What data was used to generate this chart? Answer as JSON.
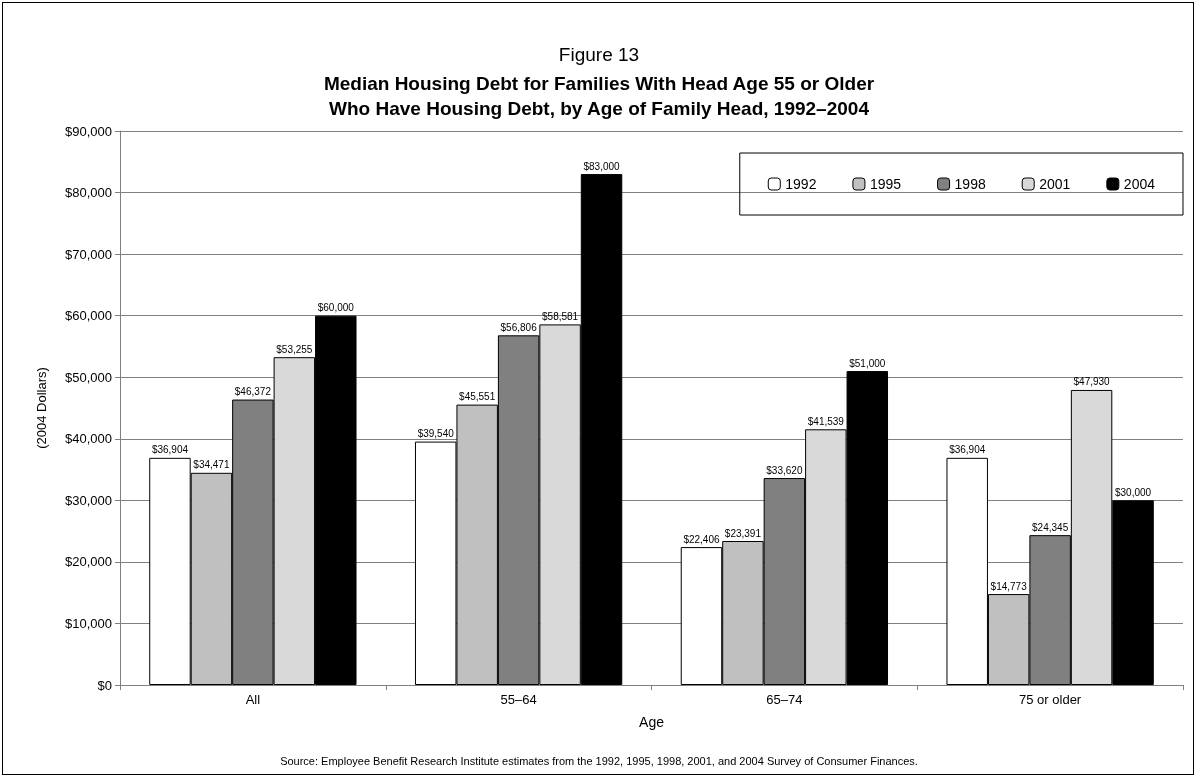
{
  "chart_data": {
    "type": "bar",
    "title": "Figure 13",
    "subtitle": "Median Housing Debt for Families With Head Age 55 or Older\nWho Have Housing Debt, by Age of Family Head, 1992–2004",
    "xlabel": "Age",
    "ylabel": "(2004 Dollars)",
    "annotations": [
      "Source: Employee Benefit Research Institute estimates from the 1992, 1995, 1998, 2001, and 2004 Survey of Consumer Finances."
    ],
    "categories": [
      "All",
      "55–64",
      "65–74",
      "75 or older"
    ],
    "series": [
      {
        "name": "1992",
        "color": "#ffffff",
        "values": [
          36904,
          39540,
          22406,
          36904
        ],
        "value_labels": [
          "$36,904",
          "$39,540",
          "$22,406",
          "$36,904"
        ]
      },
      {
        "name": "1995",
        "color": "#c0c0c0",
        "values": [
          34471,
          45551,
          23391,
          14773
        ],
        "value_labels": [
          "$34,471",
          "$45,551",
          "$23,391",
          "$14,773"
        ]
      },
      {
        "name": "1998",
        "color": "#808080",
        "values": [
          46372,
          56806,
          33620,
          24345
        ],
        "value_labels": [
          "$46,372",
          "$56,806",
          "$33,620",
          "$24,345"
        ]
      },
      {
        "name": "2001",
        "color": "#d9d9d9",
        "values": [
          53255,
          58581,
          41539,
          47930
        ],
        "value_labels": [
          "$53,255",
          "$58,581",
          "$41,539",
          "$47,930"
        ]
      },
      {
        "name": "2004",
        "color": "#000000",
        "values": [
          60000,
          83000,
          51000,
          30000
        ],
        "value_labels": [
          "$60,000",
          "$83,000",
          "$51,000",
          "$30,000"
        ]
      }
    ],
    "ylim": [
      0,
      90000
    ],
    "yticks": [
      {
        "value": 0,
        "label": "$0"
      },
      {
        "value": 10000,
        "label": "$10,000"
      },
      {
        "value": 20000,
        "label": "$20,000"
      },
      {
        "value": 30000,
        "label": "$30,000"
      },
      {
        "value": 40000,
        "label": "$40,000"
      },
      {
        "value": 50000,
        "label": "$50,000"
      },
      {
        "value": 60000,
        "label": "$60,000"
      },
      {
        "value": 70000,
        "label": "$70,000"
      },
      {
        "value": 80000,
        "label": "$80,000"
      },
      {
        "value": 90000,
        "label": "$90,000"
      }
    ],
    "grid": "y",
    "legend": "top right"
  }
}
